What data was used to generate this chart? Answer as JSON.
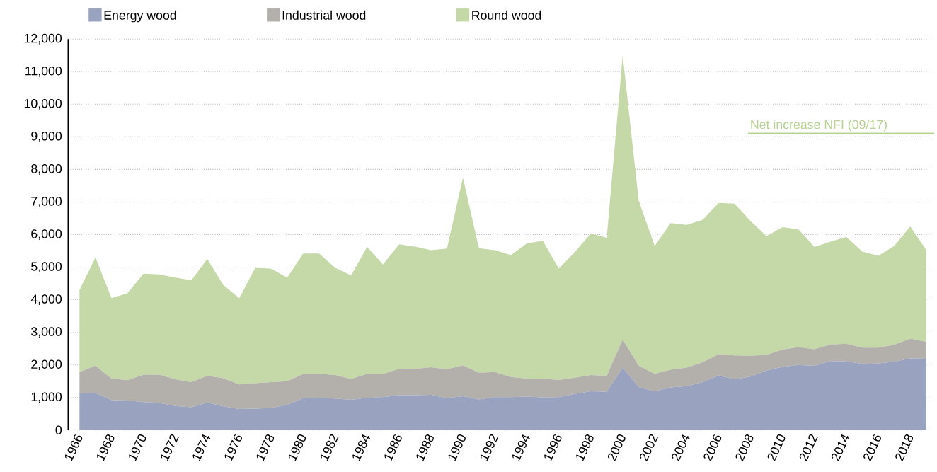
{
  "chart_data": {
    "type": "area",
    "stacked": true,
    "x": [
      1966,
      1967,
      1968,
      1969,
      1970,
      1971,
      1972,
      1973,
      1974,
      1975,
      1976,
      1977,
      1978,
      1979,
      1980,
      1981,
      1982,
      1983,
      1984,
      1985,
      1986,
      1987,
      1988,
      1989,
      1990,
      1991,
      1992,
      1993,
      1994,
      1995,
      1996,
      1997,
      1998,
      1999,
      2000,
      2001,
      2002,
      2003,
      2004,
      2005,
      2006,
      2007,
      2008,
      2009,
      2010,
      2011,
      2012,
      2013,
      2014,
      2015,
      2016,
      2017,
      2018,
      2019
    ],
    "series": [
      {
        "name": "Energy wood",
        "color": "#99a2bf",
        "values": [
          1130,
          1140,
          920,
          910,
          860,
          830,
          740,
          700,
          850,
          730,
          650,
          660,
          680,
          780,
          980,
          990,
          970,
          930,
          990,
          1010,
          1070,
          1070,
          1080,
          980,
          1040,
          940,
          1010,
          1010,
          1030,
          1000,
          1010,
          1110,
          1190,
          1180,
          1920,
          1320,
          1190,
          1310,
          1350,
          1470,
          1680,
          1560,
          1640,
          1830,
          1940,
          2000,
          1970,
          2120,
          2110,
          2030,
          2040,
          2100,
          2200,
          2190
        ]
      },
      {
        "name": "Industrial wood",
        "color": "#b3afab",
        "values": [
          650,
          840,
          660,
          620,
          840,
          870,
          820,
          770,
          820,
          860,
          750,
          780,
          790,
          720,
          740,
          740,
          720,
          640,
          740,
          710,
          810,
          810,
          850,
          890,
          950,
          820,
          770,
          620,
          550,
          580,
          530,
          500,
          500,
          490,
          860,
          660,
          540,
          540,
          570,
          610,
          650,
          730,
          640,
          480,
          530,
          550,
          510,
          510,
          540,
          500,
          490,
          520,
          610,
          520
        ]
      },
      {
        "name": "Round wood",
        "color": "#c5d9a8",
        "values": [
          2520,
          3320,
          2470,
          2670,
          3100,
          3080,
          3120,
          3130,
          3580,
          2860,
          2650,
          3540,
          3480,
          3180,
          3700,
          3690,
          3290,
          3180,
          3890,
          3360,
          3820,
          3750,
          3590,
          3700,
          5760,
          3820,
          3740,
          3740,
          4150,
          4230,
          3420,
          3850,
          4340,
          4230,
          8720,
          5070,
          3920,
          4500,
          4380,
          4370,
          4640,
          4660,
          4140,
          3640,
          3760,
          3610,
          3140,
          3150,
          3280,
          2950,
          2820,
          3030,
          3440,
          2820
        ]
      }
    ],
    "xlim": [
      1965.3,
      2019.5
    ],
    "xticks": [
      1966,
      1968,
      1970,
      1972,
      1974,
      1976,
      1978,
      1980,
      1982,
      1984,
      1986,
      1988,
      1990,
      1992,
      1994,
      1996,
      1998,
      2000,
      2002,
      2004,
      2006,
      2008,
      2010,
      2012,
      2014,
      2016,
      2018
    ],
    "ylim": [
      0,
      12000
    ],
    "yticks": [
      0,
      {
        "value": 1000,
        "label": "1,000"
      },
      {
        "value": 2000,
        "label": "2,000"
      },
      {
        "value": 3000,
        "label": "3,000"
      },
      {
        "value": 4000,
        "label": "4,000"
      },
      {
        "value": 5000,
        "label": "5,000"
      },
      {
        "value": 6000,
        "label": "6,000"
      },
      {
        "value": 7000,
        "label": "7,000"
      },
      {
        "value": 8000,
        "label": "8,000"
      },
      {
        "value": 9000,
        "label": "9,000"
      },
      {
        "value": 10000,
        "label": "10,000"
      },
      {
        "value": 11000,
        "label": "11,000"
      },
      {
        "value": 12000,
        "label": "12,000"
      }
    ],
    "ref_lines": [
      {
        "axis": "y",
        "value": 9100,
        "label": "Net increase NFI (09/17)",
        "color": "#b5d38f"
      }
    ],
    "grid": "y",
    "legend": "top left"
  }
}
